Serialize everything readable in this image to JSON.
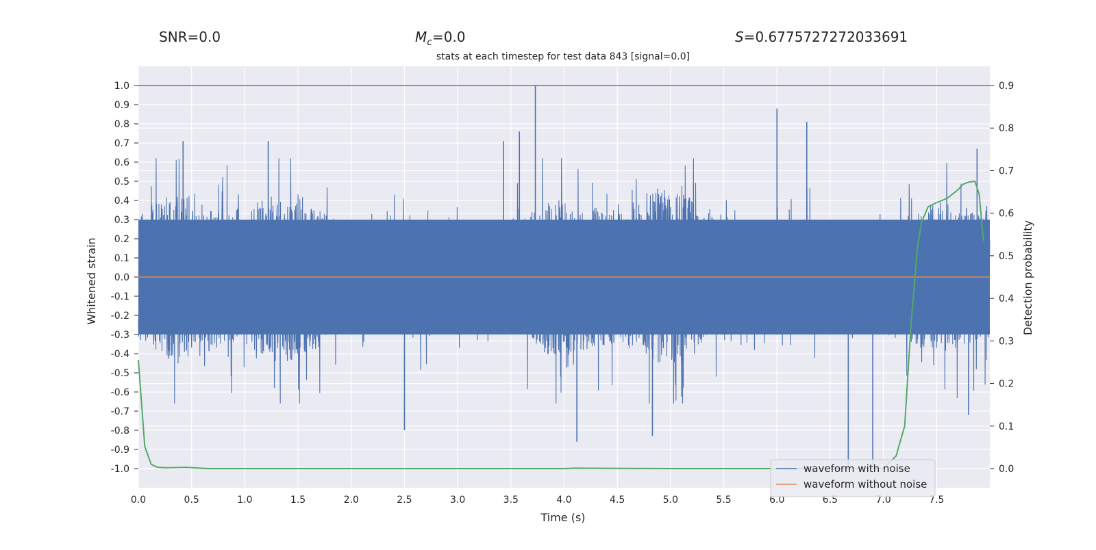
{
  "header": {
    "snr_label": "SNR=0.0",
    "mc_symbol": "M",
    "mc_subscript": "c",
    "mc_value": "=0.0",
    "s_symbol": "S",
    "s_value": "=0.6775727272033691",
    "title": "stats at each timestep for test data 843 [signal=0.0]"
  },
  "colors": {
    "background": "#eaeaf2",
    "grid": "#ffffff",
    "noise": "#4c72b0",
    "clean": "#dd8452",
    "probability": "#55a868",
    "threshold": "#c44e52"
  },
  "chart_data": {
    "type": "line",
    "title": "stats at each timestep for test data 843 [signal=0.0]",
    "xlabel": "Time (s)",
    "ylabel": "Whitened strain",
    "y2label": "Detection probability",
    "xlim": [
      0.0,
      8.0
    ],
    "ylim": [
      -1.1,
      1.1
    ],
    "y2lim": [
      -0.045,
      0.945
    ],
    "xticks": [
      "0.0",
      "0.5",
      "1.0",
      "1.5",
      "2.0",
      "2.5",
      "3.0",
      "3.5",
      "4.0",
      "4.5",
      "5.0",
      "5.5",
      "6.0",
      "6.5",
      "7.0",
      "7.5"
    ],
    "yticks": [
      "-1.0",
      "-0.9",
      "-0.8",
      "-0.7",
      "-0.6",
      "-0.5",
      "-0.4",
      "-0.3",
      "-0.2",
      "-0.1",
      "0.0",
      "0.1",
      "0.2",
      "0.3",
      "0.4",
      "0.5",
      "0.6",
      "0.7",
      "0.8",
      "0.9",
      "1.0"
    ],
    "y2ticks": [
      "0.0",
      "0.1",
      "0.2",
      "0.3",
      "0.4",
      "0.5",
      "0.6",
      "0.7",
      "0.8",
      "0.9"
    ],
    "grid": true,
    "legend_position": "lower-right",
    "threshold_line": {
      "y": 1.0
    },
    "series": [
      {
        "name": "waveform with noise",
        "description_envelope": "dense whitened noise, typical band about -0.3 to 0.3, peaks up to 1.0",
        "max_peaks": [
          [
            0.42,
            0.71
          ],
          [
            1.22,
            0.71
          ],
          [
            3.43,
            0.71
          ],
          [
            3.58,
            0.76
          ],
          [
            3.73,
            1.0
          ],
          [
            6.0,
            0.88
          ],
          [
            6.28,
            0.81
          ],
          [
            7.88,
            0.67
          ]
        ],
        "min_peaks": [
          [
            2.5,
            -0.8
          ],
          [
            4.12,
            -0.86
          ],
          [
            4.83,
            -0.83
          ],
          [
            6.67,
            -1.0
          ],
          [
            6.9,
            -0.99
          ],
          [
            7.8,
            -0.72
          ]
        ]
      },
      {
        "name": "waveform without noise",
        "x": [
          0.0,
          8.0
        ],
        "y": [
          0.0,
          0.0
        ]
      },
      {
        "axis": "right",
        "x": [
          0.0,
          0.06,
          0.12,
          0.18,
          0.25,
          0.45,
          0.65,
          1.0,
          2.0,
          3.0,
          4.0,
          4.1,
          5.0,
          6.0,
          6.5,
          7.0,
          7.12,
          7.2,
          7.26,
          7.32,
          7.36,
          7.42,
          7.5,
          7.6,
          7.7,
          7.75,
          7.8,
          7.86,
          7.9,
          7.94
        ],
        "y": [
          0.255,
          0.052,
          0.01,
          0.003,
          0.002,
          0.003,
          0.0,
          0.0,
          0.0,
          0.0,
          0.0,
          0.001,
          0.0,
          0.0,
          0.0,
          0.0,
          0.03,
          0.1,
          0.34,
          0.52,
          0.58,
          0.615,
          0.625,
          0.635,
          0.655,
          0.668,
          0.673,
          0.675,
          0.645,
          0.535
        ]
      }
    ]
  }
}
